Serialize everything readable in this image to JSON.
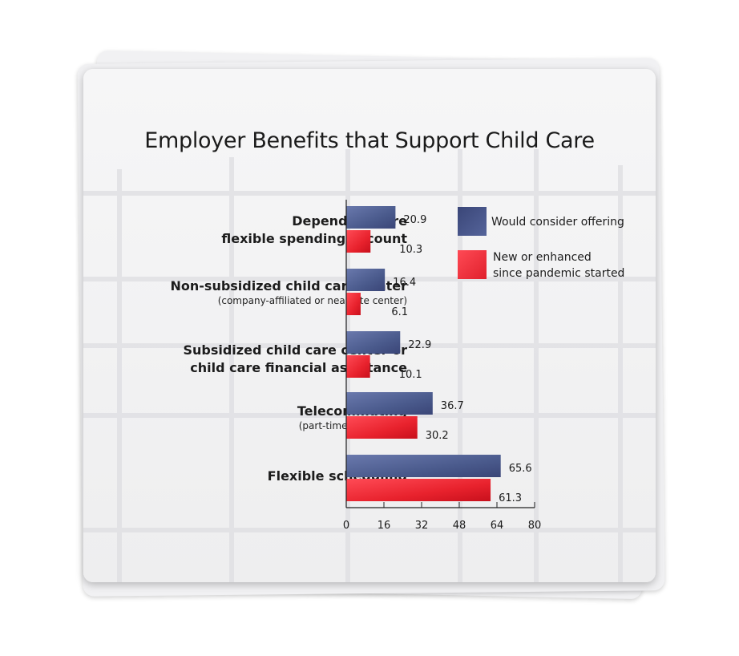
{
  "chart_data": {
    "type": "bar",
    "orientation": "horizontal",
    "title": "Employer Benefits that Support Child Care",
    "categories": [
      {
        "label": "Dependent care flexible spending account",
        "lines": [
          "Dependent care",
          "flexible spending account"
        ],
        "sub": ""
      },
      {
        "label": "Non-subsidized child care center",
        "lines": [
          "Non-subsidized child care center"
        ],
        "sub": "(company-affiliated or near-site center)"
      },
      {
        "label": "Subsidized child care center or child care financial assistance",
        "lines": [
          "Subsidized child care center or",
          "child care financial assistance"
        ],
        "sub": ""
      },
      {
        "label": "Telecommuting",
        "lines": [
          "Telecommuting"
        ],
        "sub": "(part-time or full-time)"
      },
      {
        "label": "Flexible scheduling",
        "lines": [
          "Flexible scheduling"
        ],
        "sub": ""
      }
    ],
    "series": [
      {
        "name": "Would consider offering",
        "color": "#4a5a8c",
        "values": [
          20.9,
          16.4,
          22.9,
          36.7,
          65.6
        ]
      },
      {
        "name": "New or enhanced since pandemic started",
        "legend_lines": [
          "New or enhanced",
          "since pandemic started"
        ],
        "color": "#e8222d",
        "values": [
          10.3,
          6.1,
          10.1,
          30.2,
          61.3
        ]
      }
    ],
    "xlim": [
      0,
      80
    ],
    "xticks": [
      0,
      16,
      32,
      48,
      64,
      80
    ],
    "legend_position": "top-right",
    "grid": true
  }
}
